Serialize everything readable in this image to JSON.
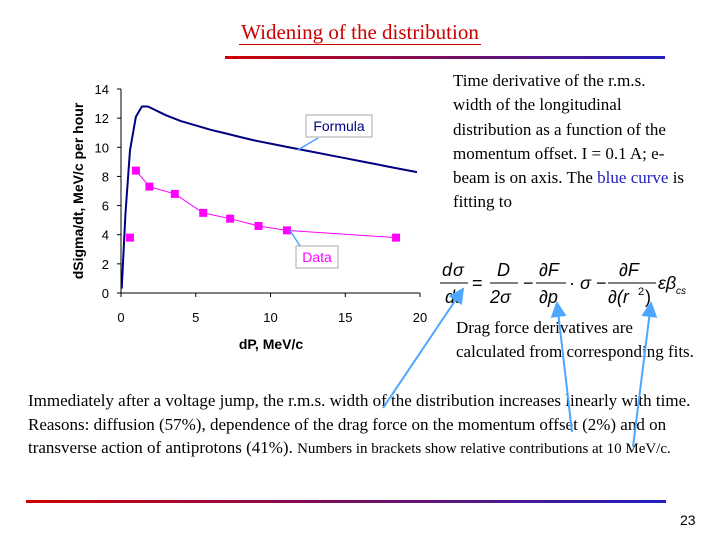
{
  "slide": {
    "title": "Widening of the distribution",
    "description_part1": "Time derivative of the r.m.s. width of the longitudinal distribution as a function of the momentum offset. I = 0.1 A; e- beam is on axis. The ",
    "description_blue": "blue curve",
    "description_part2": " is fitting to",
    "drag_text": "Drag force derivatives are calculated from corresponding fits.",
    "body_main": "Immediately after a voltage jump, the r.m.s. width of the distribution increases linearly with time. Reasons: diffusion (57%), dependence  of the drag force on the momentum offset (2%) and on transverse action of antiprotons (41%). ",
    "body_small": "Numbers in brackets show relative contributions at 10 MeV/c.",
    "page_number": "23"
  },
  "formula": {
    "d": "d",
    "sigma": "σ",
    "dt": "dt",
    "eq": "=",
    "D": "D",
    "two_sigma": "2σ",
    "minus1": "−",
    "dF": "∂F",
    "dp": "∂p",
    "dot_sigma": "· σ",
    "minus2": "−",
    "dF2": "∂F",
    "dr": "∂(r",
    "sq": "2",
    "close": ")",
    "eps": "εβ",
    "cs": "cs"
  },
  "chart_data": {
    "type": "scatter",
    "xlabel": "dP, MeV/c",
    "ylabel": "dSigma/dt, MeV/c per hour",
    "xlim": [
      0,
      20
    ],
    "ylim": [
      0,
      14
    ],
    "x_ticks": [
      "0",
      "5",
      "10",
      "15",
      "20"
    ],
    "y_ticks": [
      "0",
      "2",
      "4",
      "6",
      "8",
      "10",
      "12",
      "14"
    ],
    "grid": false,
    "series": [
      {
        "name": "Formula",
        "kind": "line",
        "color": "#000080",
        "x": [
          0.05,
          0.3,
          0.6,
          1.0,
          1.4,
          1.8,
          2.2,
          2.6,
          3.0,
          4,
          5,
          6,
          7,
          8,
          9,
          10,
          11,
          12,
          13,
          14,
          15,
          16,
          17,
          18,
          19,
          19.8
        ],
        "y": [
          0.3,
          5.5,
          9.8,
          12.1,
          12.8,
          12.8,
          12.6,
          12.4,
          12.2,
          11.8,
          11.5,
          11.2,
          10.95,
          10.7,
          10.45,
          10.25,
          10.05,
          9.85,
          9.65,
          9.45,
          9.25,
          9.05,
          8.85,
          8.65,
          8.45,
          8.3
        ]
      },
      {
        "name": "Data",
        "kind": "markers",
        "color": "#ff00ff",
        "x": [
          0.6,
          1.0,
          1.9,
          3.6,
          5.5,
          7.3,
          9.2,
          11.1,
          18.4
        ],
        "y": [
          3.8,
          8.4,
          7.3,
          6.8,
          5.5,
          5.1,
          4.6,
          4.3,
          3.8
        ]
      }
    ],
    "annotations": [
      {
        "text": "Formula",
        "target_x": 11.8,
        "target_y": 9.8
      },
      {
        "text": "Data",
        "target_x": 11.3,
        "target_y": 4.3
      }
    ]
  }
}
